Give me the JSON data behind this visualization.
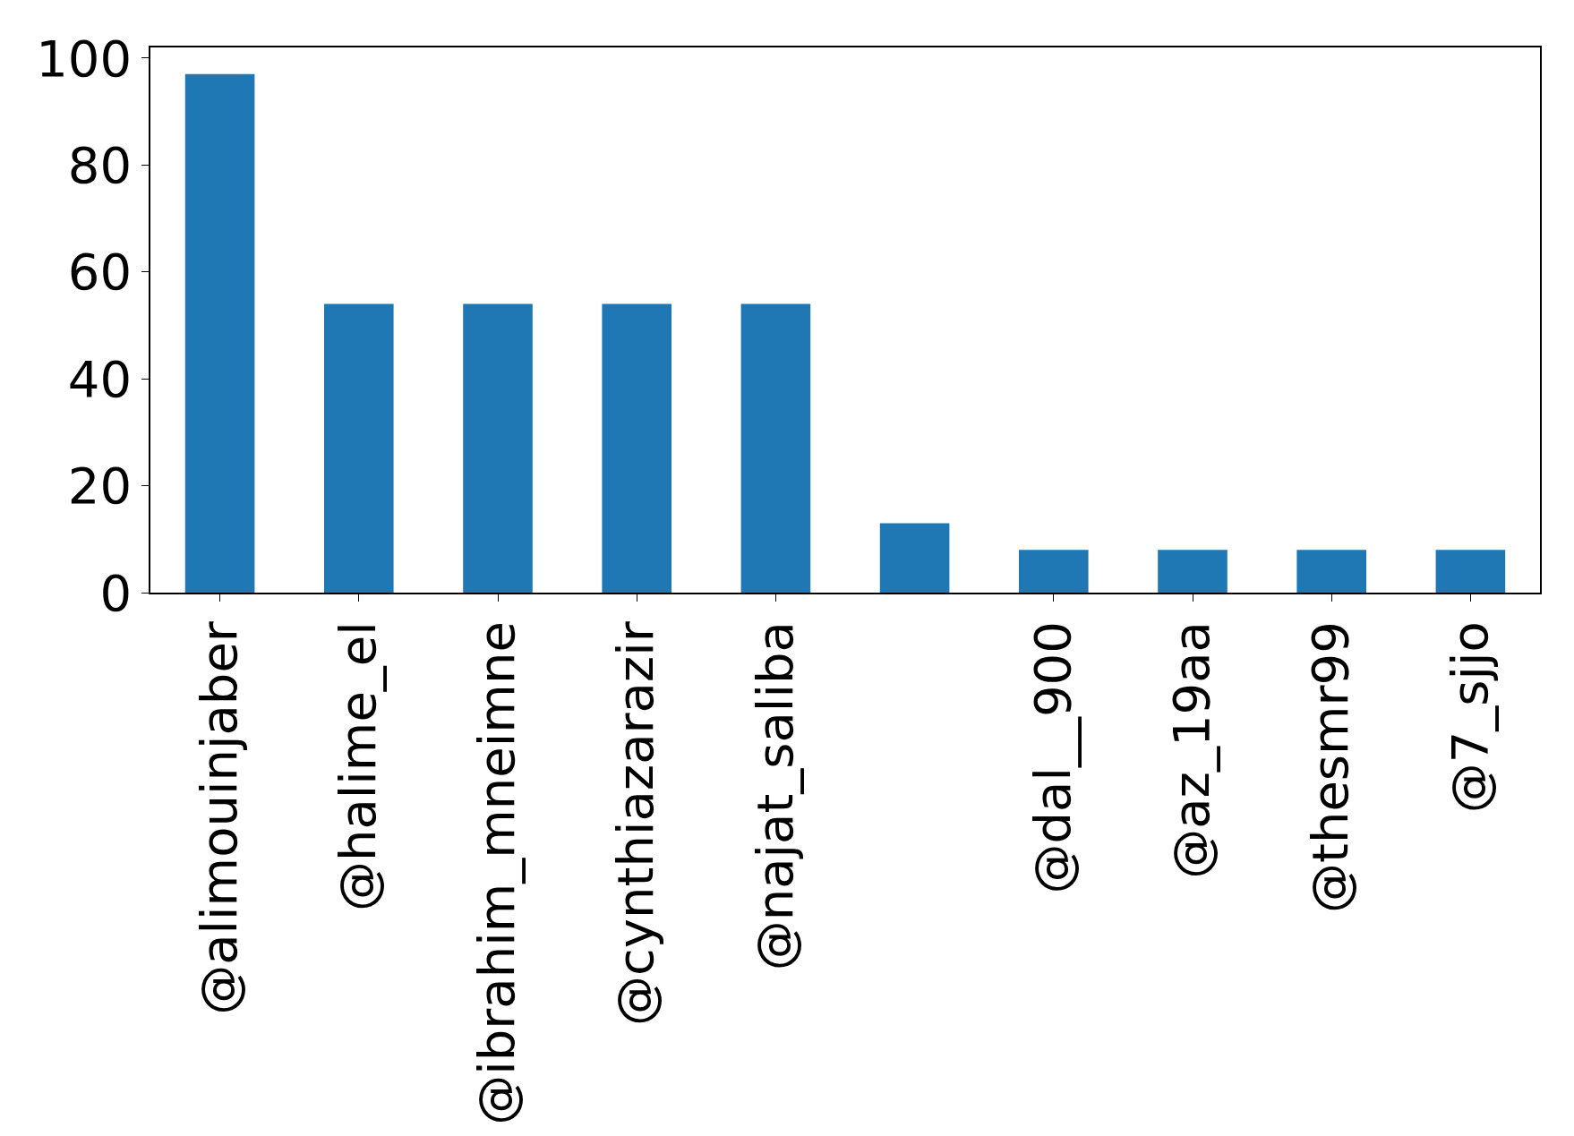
{
  "chart_data": {
    "type": "bar",
    "categories": [
      "@alimouinjaber",
      "@halime_el",
      "@ibrahim_mneimne",
      "@cynthiazarazir",
      "@najat_saliba",
      null,
      "@dal__900",
      "@az_19aa",
      "@thesmr99",
      "@7_sjjo"
    ],
    "values": [
      97,
      54,
      54,
      54,
      54,
      13,
      8,
      8,
      8,
      8
    ],
    "color": "#1f77b4",
    "ylim": [
      0,
      102
    ],
    "yticks": [
      0,
      20,
      40,
      60,
      80,
      100
    ],
    "legend": false
  }
}
